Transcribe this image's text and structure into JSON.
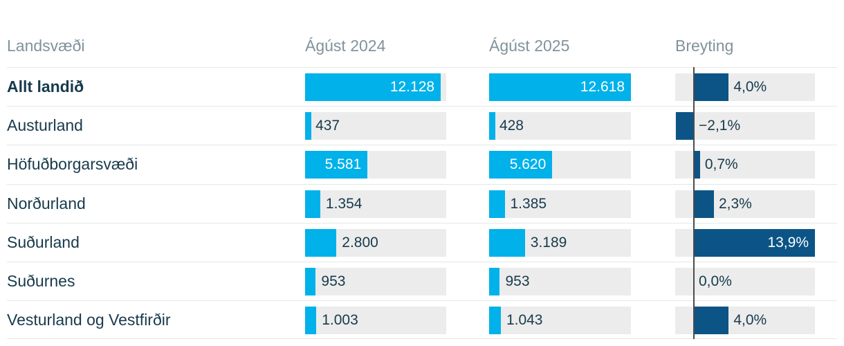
{
  "header": {
    "region": "Landsvæði",
    "col2024": "Ágúst 2024",
    "col2025": "Ágúst 2025",
    "change": "Breyting"
  },
  "colors": {
    "cyan": "#00b1ea",
    "navy": "#0c5486",
    "track": "#ececec",
    "text_dark": "#173a4c",
    "header_gray": "#81929c",
    "divider": "#e5e7e7",
    "zero_line": "#4b4b4b",
    "bar_text_light": "#ffffff"
  },
  "chart_data": {
    "type": "bar",
    "title": "",
    "columns": [
      "Landsvæði",
      "Ágúst 2024",
      "Ágúst 2025",
      "Breyting"
    ],
    "value_axis_max": 12618,
    "change_axis": {
      "min": -2.1,
      "max": 13.9
    },
    "rows": [
      {
        "region": "Allt landið",
        "bold": true,
        "aug2024": 12128,
        "aug2024_label": "12.128",
        "aug2025": 12618,
        "aug2025_label": "12.618",
        "change_pct": 4.0,
        "change_label": "4,0%"
      },
      {
        "region": "Austurland",
        "bold": false,
        "aug2024": 437,
        "aug2024_label": "437",
        "aug2025": 428,
        "aug2025_label": "428",
        "change_pct": -2.1,
        "change_label": "−2,1%"
      },
      {
        "region": "Höfuðborgarsvæði",
        "bold": false,
        "aug2024": 5581,
        "aug2024_label": "5.581",
        "aug2025": 5620,
        "aug2025_label": "5.620",
        "change_pct": 0.7,
        "change_label": "0,7%"
      },
      {
        "region": "Norðurland",
        "bold": false,
        "aug2024": 1354,
        "aug2024_label": "1.354",
        "aug2025": 1385,
        "aug2025_label": "1.385",
        "change_pct": 2.3,
        "change_label": "2,3%"
      },
      {
        "region": "Suðurland",
        "bold": false,
        "aug2024": 2800,
        "aug2024_label": "2.800",
        "aug2025": 3189,
        "aug2025_label": "3.189",
        "change_pct": 13.9,
        "change_label": "13,9%"
      },
      {
        "region": "Suðurnes",
        "bold": false,
        "aug2024": 953,
        "aug2024_label": "953",
        "aug2025": 953,
        "aug2025_label": "953",
        "change_pct": 0.0,
        "change_label": "0,0%"
      },
      {
        "region": "Vesturland og Vestfirðir",
        "bold": false,
        "aug2024": 1003,
        "aug2024_label": "1.003",
        "aug2025": 1043,
        "aug2025_label": "1.043",
        "change_pct": 4.0,
        "change_label": "4,0%"
      }
    ]
  }
}
